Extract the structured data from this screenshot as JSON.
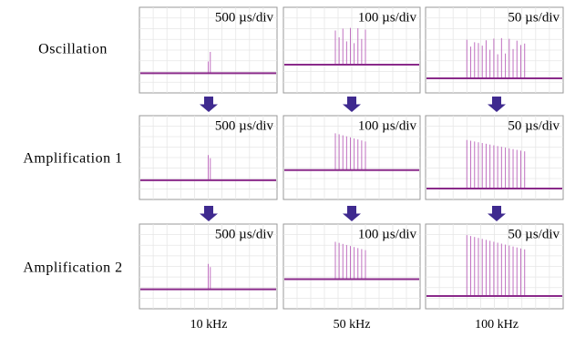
{
  "row_labels": [
    "Oscillation",
    "Amplification 1",
    "Amplification 2"
  ],
  "column_labels": [
    "10 kHz",
    "50 kHz",
    "100 kHz"
  ],
  "panels": [
    [
      "500 µs/div",
      "100 µs/div",
      "50 µs/div"
    ],
    [
      "500 µs/div",
      "100 µs/div",
      "50 µs/div"
    ],
    [
      "500 µs/div",
      "100 µs/div",
      "50 µs/div"
    ]
  ]
}
